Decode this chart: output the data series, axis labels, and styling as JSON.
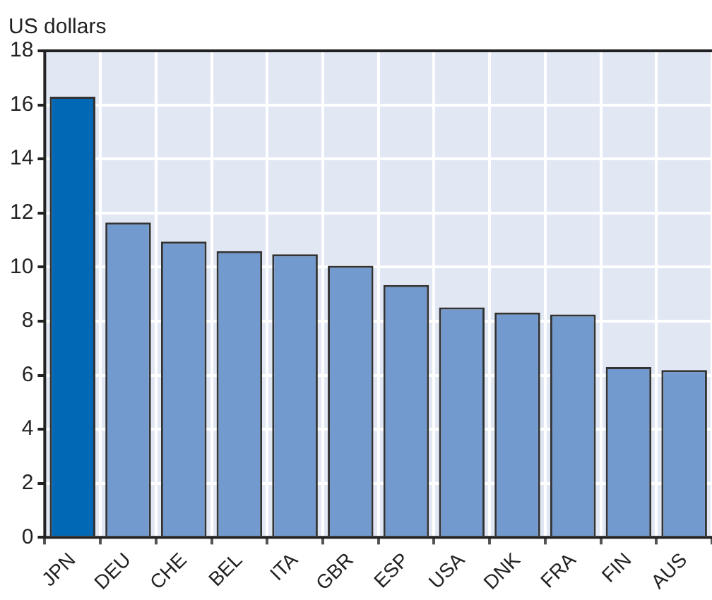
{
  "chart_data": {
    "type": "bar",
    "ylabel": "US dollars",
    "categories": [
      "JPN",
      "DEU",
      "CHE",
      "BEL",
      "ITA",
      "GBR",
      "ESP",
      "USA",
      "DNK",
      "FRA",
      "FIN",
      "AUS"
    ],
    "values": [
      16.3,
      11.65,
      10.94,
      10.59,
      10.47,
      10.05,
      9.34,
      8.51,
      8.32,
      8.25,
      6.3,
      6.19
    ],
    "colors": [
      "#0068b4",
      "#729acf",
      "#729acf",
      "#729acf",
      "#729acf",
      "#729acf",
      "#729acf",
      "#729acf",
      "#729acf",
      "#729acf",
      "#729acf",
      "#729acf"
    ],
    "ylim": [
      0,
      18
    ],
    "yticks": [
      0,
      2,
      4,
      6,
      8,
      10,
      12,
      14,
      16,
      18
    ],
    "grid": true,
    "legend": false
  }
}
